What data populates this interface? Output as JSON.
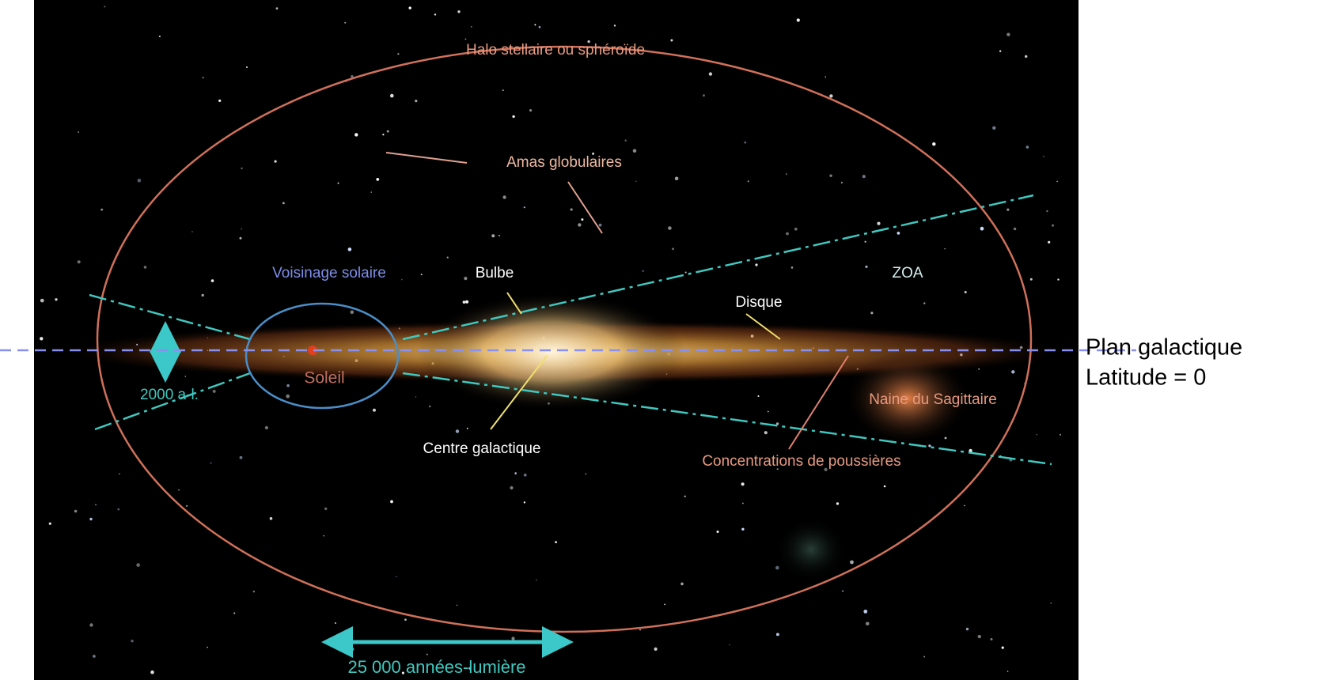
{
  "diagram": {
    "labels": {
      "halo": "Halo stellaire ou sphéroïde",
      "globular_clusters": "Amas globulaires",
      "solar_neighborhood": "Voisinage solaire",
      "bulge": "Bulbe",
      "zoa": "ZOA",
      "disk": "Disque",
      "sun": "Soleil",
      "thickness": "2000 a-l.",
      "sagittarius_dwarf": "Naine du Sagittaire",
      "galactic_center": "Centre galactique",
      "dust": "Concentrations de poussières",
      "scale": "25 000 années-lumière"
    },
    "side_note": {
      "line1": "Plan galactique",
      "line2": "Latitude = 0"
    }
  }
}
